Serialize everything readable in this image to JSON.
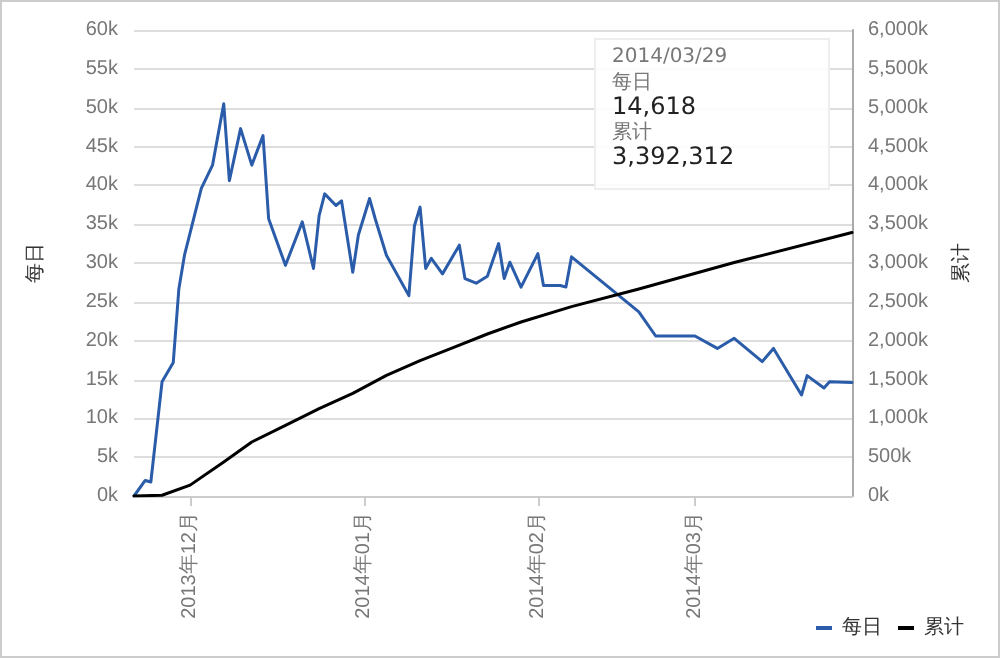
{
  "chart_data": {
    "type": "line",
    "ylabel": "每日",
    "y2label": "累计",
    "xlim": [
      "2013-11-21",
      "2014-03-29"
    ],
    "xticks": [
      {
        "value": "2013-12-01",
        "label": "2013年12月"
      },
      {
        "value": "2014-01-01",
        "label": "2014年01月"
      },
      {
        "value": "2014-02-01",
        "label": "2014年02月"
      },
      {
        "value": "2014-03-01",
        "label": "2014年03月"
      }
    ],
    "ylim": [
      0,
      60000
    ],
    "yticks": [
      {
        "value": 0,
        "label": "0k"
      },
      {
        "value": 5000,
        "label": "5k"
      },
      {
        "value": 10000,
        "label": "10k"
      },
      {
        "value": 15000,
        "label": "15k"
      },
      {
        "value": 20000,
        "label": "20k"
      },
      {
        "value": 25000,
        "label": "25k"
      },
      {
        "value": 30000,
        "label": "30k"
      },
      {
        "value": 35000,
        "label": "35k"
      },
      {
        "value": 40000,
        "label": "40k"
      },
      {
        "value": 45000,
        "label": "45k"
      },
      {
        "value": 50000,
        "label": "50k"
      },
      {
        "value": 55000,
        "label": "55k"
      },
      {
        "value": 60000,
        "label": "60k"
      }
    ],
    "y2lim": [
      0,
      6000000
    ],
    "y2ticks": [
      {
        "value": 0,
        "label": "0k"
      },
      {
        "value": 500000,
        "label": "500k"
      },
      {
        "value": 1000000,
        "label": "1,000k"
      },
      {
        "value": 1500000,
        "label": "1,500k"
      },
      {
        "value": 2000000,
        "label": "2,000k"
      },
      {
        "value": 2500000,
        "label": "2,500k"
      },
      {
        "value": 3000000,
        "label": "3,000k"
      },
      {
        "value": 3500000,
        "label": "3,500k"
      },
      {
        "value": 4000000,
        "label": "4,000k"
      },
      {
        "value": 4500000,
        "label": "4,500k"
      },
      {
        "value": 5000000,
        "label": "5,000k"
      },
      {
        "value": 5500000,
        "label": "5,500k"
      },
      {
        "value": 6000000,
        "label": "6,000k"
      }
    ],
    "series": [
      {
        "name": "每日",
        "color": "#2a5caa",
        "x": [
          "2013-11-21",
          "2013-11-23",
          "2013-11-24",
          "2013-11-26",
          "2013-11-28",
          "2013-11-29",
          "2013-11-30",
          "2013-12-03",
          "2013-12-05",
          "2013-12-07",
          "2013-12-08",
          "2013-12-10",
          "2013-12-12",
          "2013-12-14",
          "2013-12-15",
          "2013-12-18",
          "2013-12-21",
          "2013-12-23",
          "2013-12-24",
          "2013-12-25",
          "2013-12-27",
          "2013-12-28",
          "2013-12-30",
          "2013-12-31",
          "2014-01-02",
          "2014-01-03",
          "2014-01-05",
          "2014-01-09",
          "2014-01-10",
          "2014-01-11",
          "2014-01-12",
          "2014-01-13",
          "2014-01-15",
          "2014-01-18",
          "2014-01-19",
          "2014-01-21",
          "2014-01-23",
          "2014-01-25",
          "2014-01-26",
          "2014-01-27",
          "2014-01-29",
          "2014-02-01",
          "2014-02-02",
          "2014-02-05",
          "2014-02-06",
          "2014-02-07",
          "2014-02-19",
          "2014-02-22",
          "2014-03-01",
          "2014-03-05",
          "2014-03-08",
          "2014-03-13",
          "2014-03-15",
          "2014-03-20",
          "2014-03-21",
          "2014-03-24",
          "2014-03-25",
          "2014-03-29"
        ],
        "values": [
          0,
          2000,
          1800,
          14700,
          17200,
          26700,
          31000,
          39600,
          42600,
          50500,
          40600,
          47300,
          42600,
          46400,
          35700,
          29700,
          35300,
          29300,
          36100,
          38900,
          37400,
          38000,
          28800,
          33600,
          38300,
          35700,
          31000,
          25800,
          34800,
          37200,
          29300,
          30600,
          28600,
          32300,
          28000,
          27400,
          28300,
          32500,
          28000,
          30100,
          26900,
          31200,
          27100,
          27100,
          26900,
          30800,
          23700,
          20600,
          20600,
          19000,
          20300,
          17300,
          19000,
          13000,
          15500,
          13900,
          14700,
          14618
        ]
      },
      {
        "name": "累计",
        "color": "#000000",
        "axis": "y2",
        "x": [
          "2013-11-21",
          "2013-11-26",
          "2013-12-01",
          "2013-12-07",
          "2013-12-12",
          "2013-12-18",
          "2013-12-24",
          "2013-12-30",
          "2014-01-05",
          "2014-01-11",
          "2014-01-17",
          "2014-01-23",
          "2014-01-29",
          "2014-02-07",
          "2014-02-19",
          "2014-03-08",
          "2014-03-29"
        ],
        "values": [
          0,
          10000,
          140000,
          438000,
          695000,
          909000,
          1125000,
          1321000,
          1553000,
          1743000,
          1914000,
          2086000,
          2240000,
          2438000,
          2665000,
          3006000,
          3392312
        ]
      }
    ],
    "annotations": [
      "2014/03/29",
      "每日",
      "14,618",
      "累计",
      "3,392,312"
    ],
    "grid": "y",
    "legend": "bottom right",
    "marker": "none",
    "line_style": "solid"
  }
}
